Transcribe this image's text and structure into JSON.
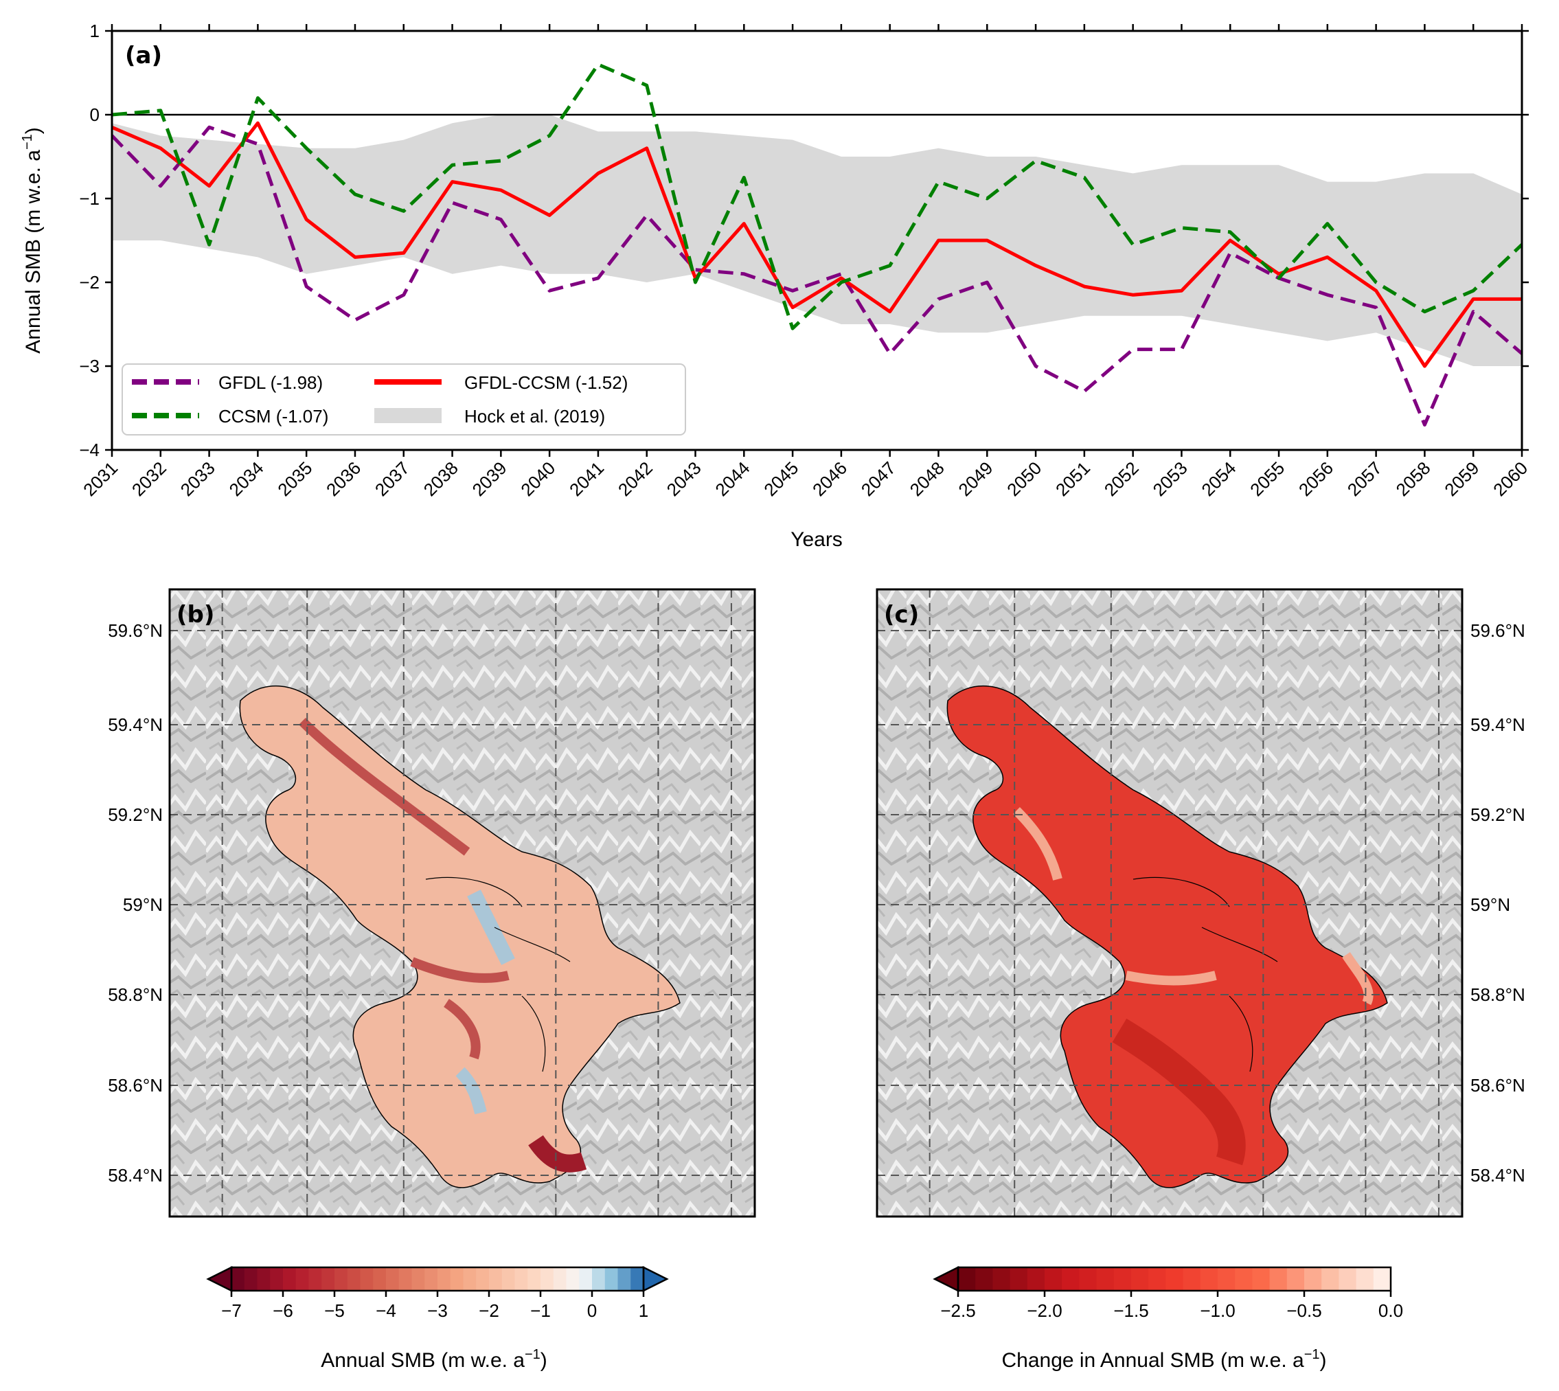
{
  "chart_data": [
    {
      "type": "line",
      "panel_label": "(a)",
      "xlabel": "Years",
      "ylabel": "Annual SMB (m w.e. a",
      "ylabel_sup": "−1",
      "ylabel_close": ")",
      "ylim": [
        -4,
        1
      ],
      "yticks": [
        "−4",
        "−3",
        "−2",
        "−1",
        "0",
        "1"
      ],
      "ytick_values": [
        -4,
        -3,
        -2,
        -1,
        0,
        1
      ],
      "x": [
        "2031",
        "2032",
        "2033",
        "2034",
        "2035",
        "2036",
        "2037",
        "2038",
        "2039",
        "2040",
        "2041",
        "2042",
        "2043",
        "2044",
        "2045",
        "2046",
        "2047",
        "2048",
        "2049",
        "2050",
        "2051",
        "2052",
        "2053",
        "2054",
        "2055",
        "2056",
        "2057",
        "2058",
        "2059",
        "2060"
      ],
      "zero_line": true,
      "legend_position": "lower-left",
      "series": [
        {
          "name": "GFDL (-1.98)",
          "color": "#800080",
          "style": "dashed",
          "values": [
            -0.25,
            -0.85,
            -0.15,
            -0.35,
            -2.05,
            -2.45,
            -2.15,
            -1.05,
            -1.25,
            -2.1,
            -1.95,
            -1.2,
            -1.85,
            -1.9,
            -2.1,
            -1.9,
            -2.85,
            -2.2,
            -2.0,
            -3.0,
            -3.3,
            -2.8,
            -2.8,
            -1.65,
            -1.95,
            -2.15,
            -2.3,
            -3.7,
            -2.35,
            -2.85
          ]
        },
        {
          "name": "GFDL-CCSM (-1.52)",
          "color": "#ff0000",
          "style": "solid",
          "values": [
            -0.15,
            -0.4,
            -0.85,
            -0.1,
            -1.25,
            -1.7,
            -1.65,
            -0.8,
            -0.9,
            -1.2,
            -0.7,
            -0.4,
            -1.95,
            -1.3,
            -2.3,
            -1.95,
            -2.35,
            -1.5,
            -1.5,
            -1.8,
            -2.05,
            -2.15,
            -2.1,
            -1.5,
            -1.9,
            -1.7,
            -2.1,
            -3.0,
            -2.2,
            -2.2
          ]
        },
        {
          "name": "CCSM (-1.07)",
          "color": "#008000",
          "style": "dashed",
          "values": [
            0.0,
            0.05,
            -1.55,
            0.2,
            -0.4,
            -0.95,
            -1.15,
            -0.6,
            -0.55,
            -0.25,
            0.6,
            0.35,
            -2.0,
            -0.75,
            -2.55,
            -2.0,
            -1.8,
            -0.8,
            -1.0,
            -0.55,
            -0.75,
            -1.55,
            -1.35,
            -1.4,
            -1.95,
            -1.3,
            -2.0,
            -2.35,
            -2.1,
            -1.55
          ]
        }
      ],
      "band": {
        "name": "Hock et al. (2019)",
        "color": "#d9d9d9",
        "upper": [
          -0.1,
          -0.25,
          -0.3,
          -0.35,
          -0.4,
          -0.4,
          -0.3,
          -0.1,
          0.0,
          0.0,
          -0.2,
          -0.2,
          -0.2,
          -0.25,
          -0.3,
          -0.5,
          -0.5,
          -0.4,
          -0.5,
          -0.5,
          -0.6,
          -0.7,
          -0.6,
          -0.6,
          -0.6,
          -0.8,
          -0.8,
          -0.7,
          -0.7,
          -0.95
        ],
        "lower": [
          -1.5,
          -1.5,
          -1.6,
          -1.7,
          -1.9,
          -1.8,
          -1.7,
          -1.9,
          -1.8,
          -1.9,
          -1.9,
          -2.0,
          -1.9,
          -2.1,
          -2.3,
          -2.5,
          -2.5,
          -2.6,
          -2.6,
          -2.5,
          -2.4,
          -2.4,
          -2.4,
          -2.5,
          -2.6,
          -2.7,
          -2.6,
          -2.8,
          -3.0,
          -3.0
        ]
      }
    },
    {
      "type": "heatmap",
      "panel_label": "(b)",
      "lat_ticks": [
        "59.6°N",
        "59.4°N",
        "59.2°N",
        "59°N",
        "58.8°N",
        "58.6°N",
        "58.4°N"
      ],
      "lat_tick_side": "left",
      "colorbar": {
        "label": "Annual SMB (m w.e. a",
        "label_sup": "−1",
        "label_close": ")",
        "range": [
          -7,
          1
        ],
        "ticks": [
          "−7",
          "−6",
          "−5",
          "−4",
          "−3",
          "−2",
          "−1",
          "0",
          "1"
        ],
        "tick_values": [
          -7,
          -6,
          -5,
          -4,
          -3,
          -2,
          -1,
          0,
          1
        ],
        "colormap": "RdBu",
        "extend": "both"
      }
    },
    {
      "type": "heatmap",
      "panel_label": "(c)",
      "lat_ticks": [
        "59.6°N",
        "59.4°N",
        "59.2°N",
        "59°N",
        "58.8°N",
        "58.6°N",
        "58.4°N"
      ],
      "lat_tick_side": "right",
      "colorbar": {
        "label": "Change in Annual SMB (m w.e. a",
        "label_sup": "−1",
        "label_close": ")",
        "range": [
          -2.5,
          0
        ],
        "ticks": [
          "−2.5",
          "−2.0",
          "−1.5",
          "−1.0",
          "−0.5",
          "0.0"
        ],
        "tick_values": [
          -2.5,
          -2.0,
          -1.5,
          -1.0,
          -0.5,
          0.0
        ],
        "colormap": "Reds_r",
        "extend": "min"
      }
    }
  ]
}
